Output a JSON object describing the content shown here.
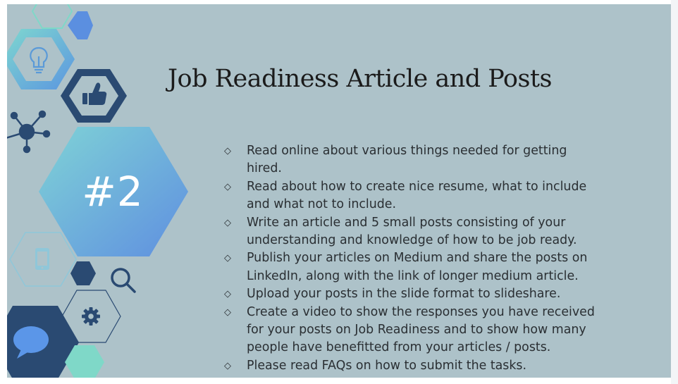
{
  "slide": {
    "title": "Job Readiness Article and Posts",
    "badge": "#2",
    "bullet_marker": "◇",
    "bullets": [
      "Read online about various things needed for getting hired.",
      "Read about how to create nice resume, what to include and what not to include.",
      "Write an article and 5 small posts consisting of your understanding and knowledge of how to be job ready.",
      "Publish your articles on Medium and share the posts on LinkedIn, along with the link of longer medium article.",
      "Upload your posts in the slide format to slideshare.",
      "Create a video to show the responses you have received for your posts on Job Readiness and to show how many people have benefitted from your articles / posts.",
      "Please read FAQs on how to submit the tasks."
    ]
  },
  "colors": {
    "background": "#adc2c9",
    "navy": "#2a4a72",
    "blue": "#5b8fe0",
    "teal": "#7fd8c8"
  },
  "icons": [
    "lightbulb-icon",
    "thumbs-up-icon",
    "network-icon",
    "phone-icon",
    "magnifier-icon",
    "gear-icon",
    "chat-bubble-icon"
  ]
}
